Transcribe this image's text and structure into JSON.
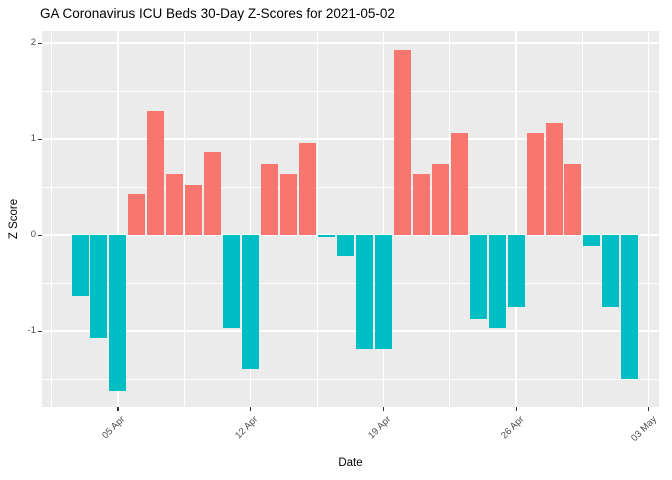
{
  "chart_data": {
    "type": "bar",
    "title": "GA Coronavirus ICU Beds 30-Day Z-Scores for 2021-05-02",
    "xlabel": "Date",
    "ylabel": "Z Score",
    "x": [
      "2021-04-03",
      "2021-04-04",
      "2021-04-05",
      "2021-04-06",
      "2021-04-07",
      "2021-04-08",
      "2021-04-09",
      "2021-04-10",
      "2021-04-11",
      "2021-04-12",
      "2021-04-13",
      "2021-04-14",
      "2021-04-15",
      "2021-04-16",
      "2021-04-17",
      "2021-04-18",
      "2021-04-19",
      "2021-04-20",
      "2021-04-21",
      "2021-04-22",
      "2021-04-23",
      "2021-04-24",
      "2021-04-25",
      "2021-04-26",
      "2021-04-27",
      "2021-04-28",
      "2021-04-29",
      "2021-04-30",
      "2021-05-01",
      "2021-05-02"
    ],
    "values": [
      -0.64,
      -1.07,
      -1.62,
      0.43,
      1.29,
      0.64,
      0.52,
      0.86,
      -0.97,
      -1.4,
      0.74,
      0.64,
      0.96,
      -0.02,
      -0.22,
      -1.19,
      -1.19,
      1.93,
      0.64,
      0.74,
      1.06,
      -0.87,
      -0.97,
      -0.75,
      1.06,
      1.17,
      0.74,
      -0.11,
      -0.75,
      -1.5
    ],
    "x_tick_labels": [
      "05 Apr",
      "12 Apr",
      "19 Apr",
      "26 Apr",
      "03 May"
    ],
    "x_tick_days": [
      2,
      9,
      16,
      23,
      30
    ],
    "x_minor_days": [
      -1.5,
      5.5,
      12.5,
      19.5,
      26.5
    ],
    "y_tick_labels": [
      "2",
      "1",
      "0",
      "-1"
    ],
    "y_ticks": [
      2,
      1,
      0,
      -1
    ],
    "y_minor_ticks": [
      1.5,
      0.5,
      -0.5,
      -1.5
    ],
    "ylim": [
      -1.79,
      2.12
    ],
    "grid": true,
    "legend_position": "none",
    "colors": {
      "positive": "#F8766D",
      "negative": "#00BFC4",
      "panel_background": "#EBEBEB",
      "gridline": "#FFFFFF",
      "axis_text": "#4D4D4D",
      "tick_mark": "#333333",
      "title_text": "#000000"
    }
  }
}
